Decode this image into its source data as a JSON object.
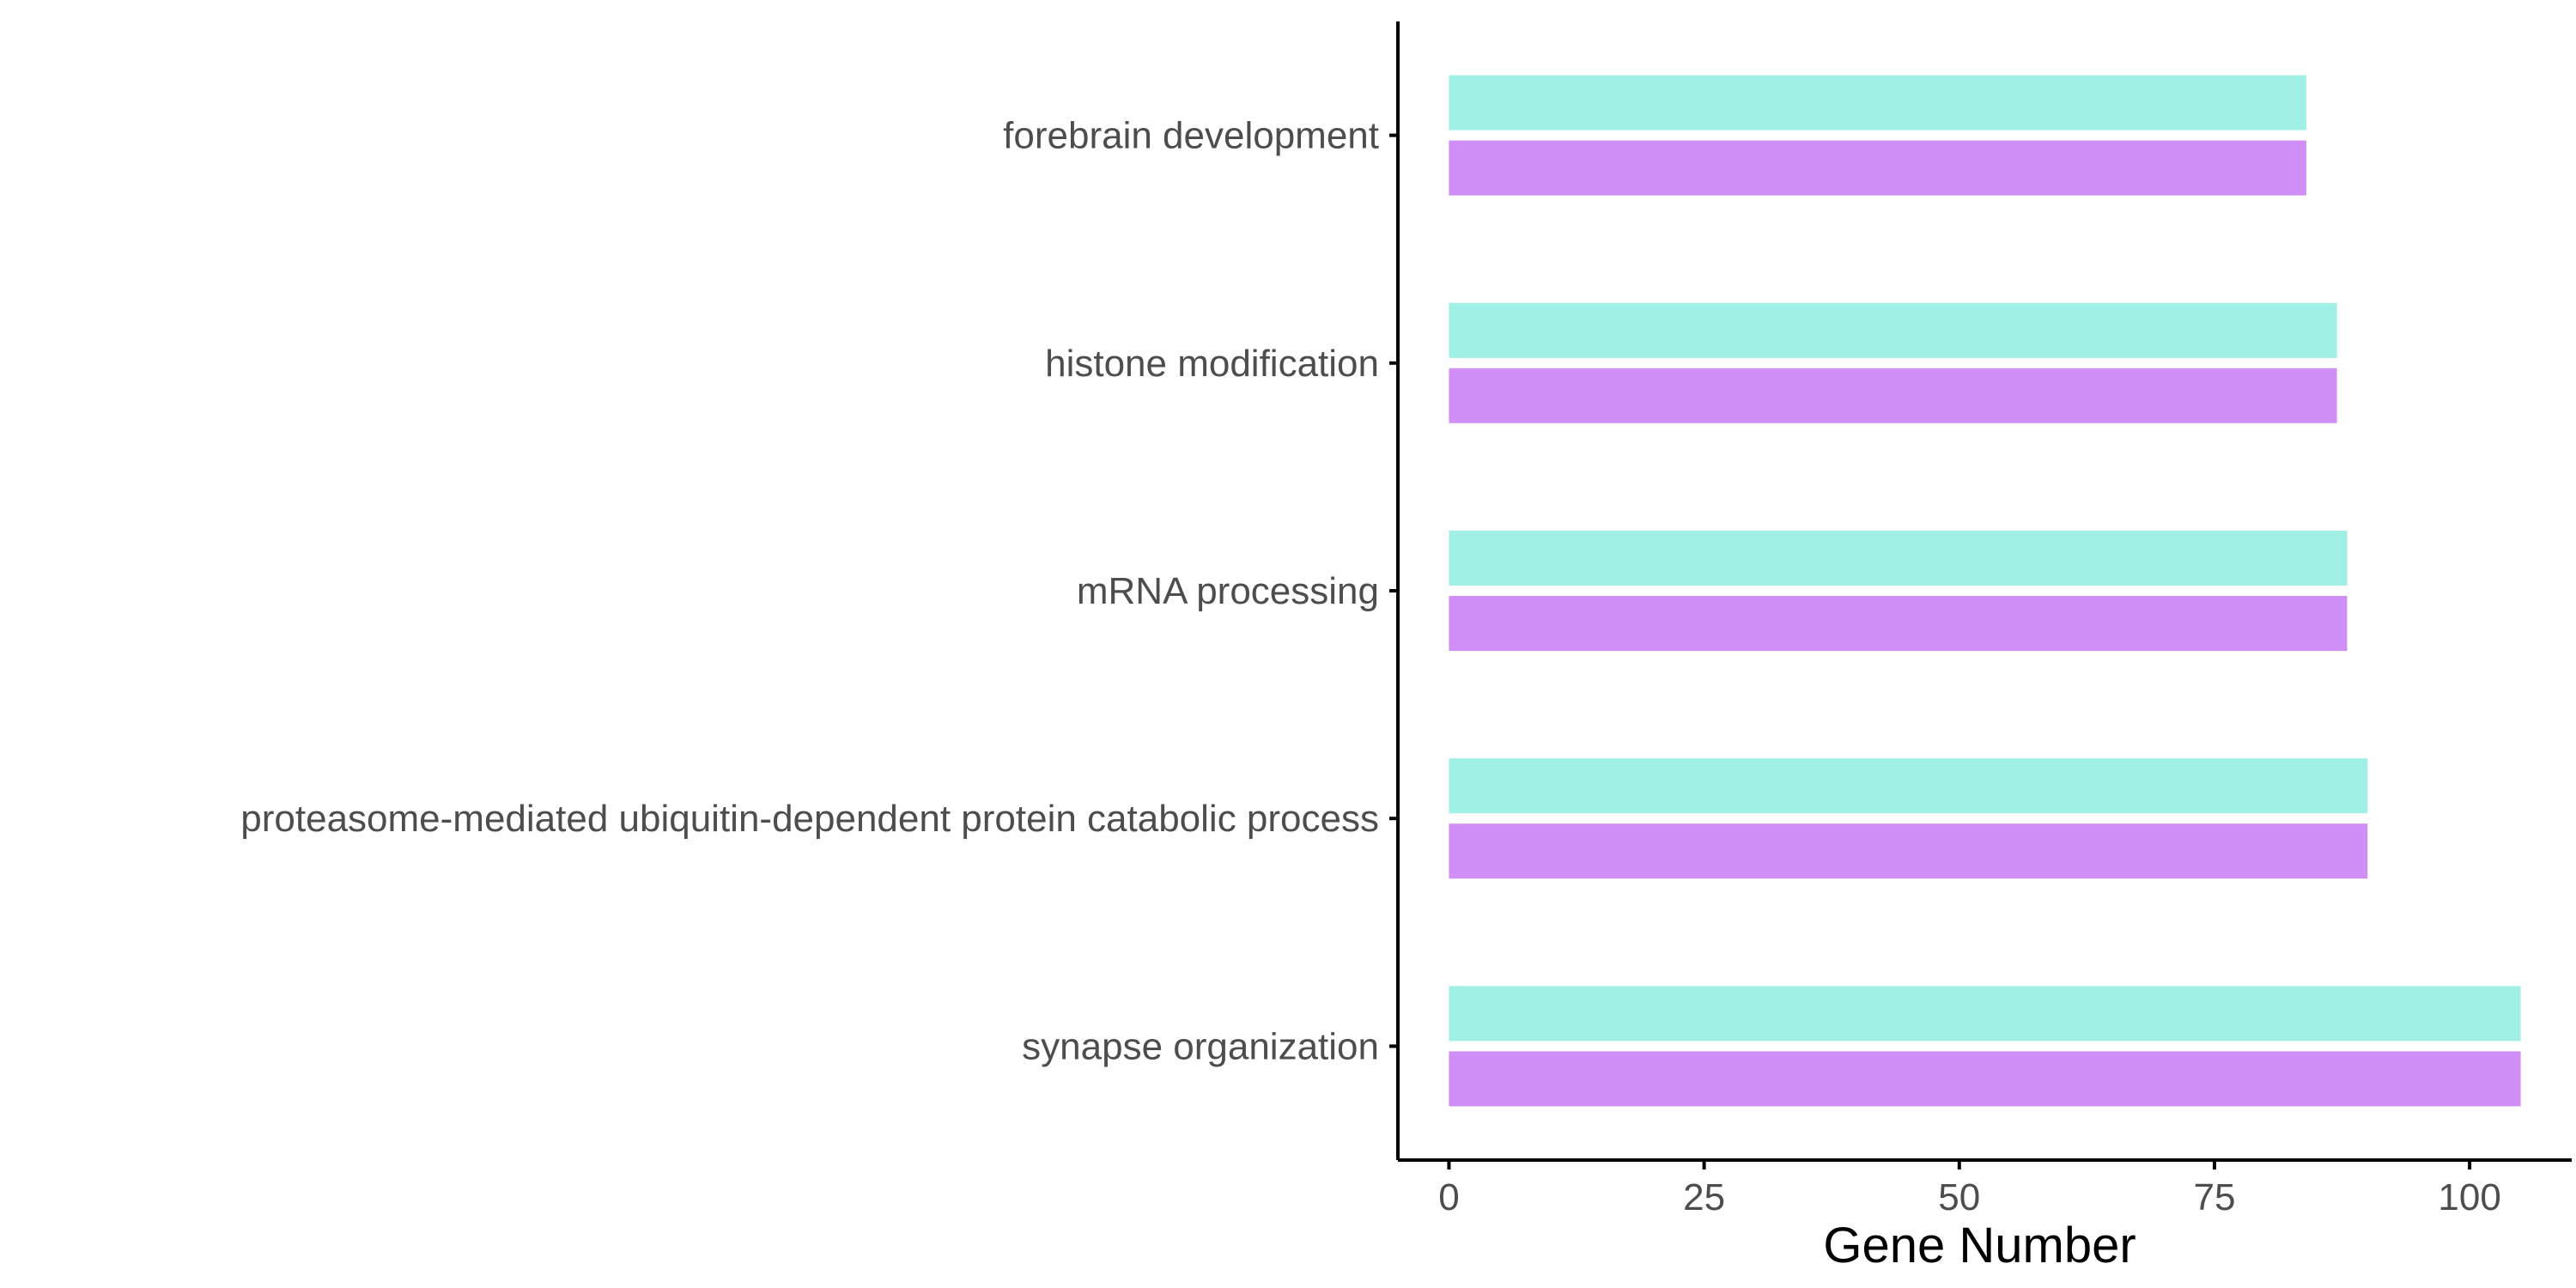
{
  "chart_data": {
    "type": "bar",
    "orientation": "horizontal",
    "title": "",
    "xlabel": "Gene Number",
    "ylabel": "",
    "xlim": [
      -5,
      110
    ],
    "xticks": [
      0,
      25,
      50,
      75,
      100
    ],
    "grid": false,
    "legend": "none",
    "categories": [
      "forebrain development",
      "histone modification",
      "mRNA processing",
      "proteasome-mediated ubiquitin-dependent protein catabolic process",
      "synapse organization"
    ],
    "series": [
      {
        "color": "#a1f0e6",
        "values": [
          84,
          87,
          88,
          90,
          105
        ]
      },
      {
        "color": "#d08ff7",
        "values": [
          84,
          87,
          88,
          90,
          105
        ]
      }
    ]
  }
}
